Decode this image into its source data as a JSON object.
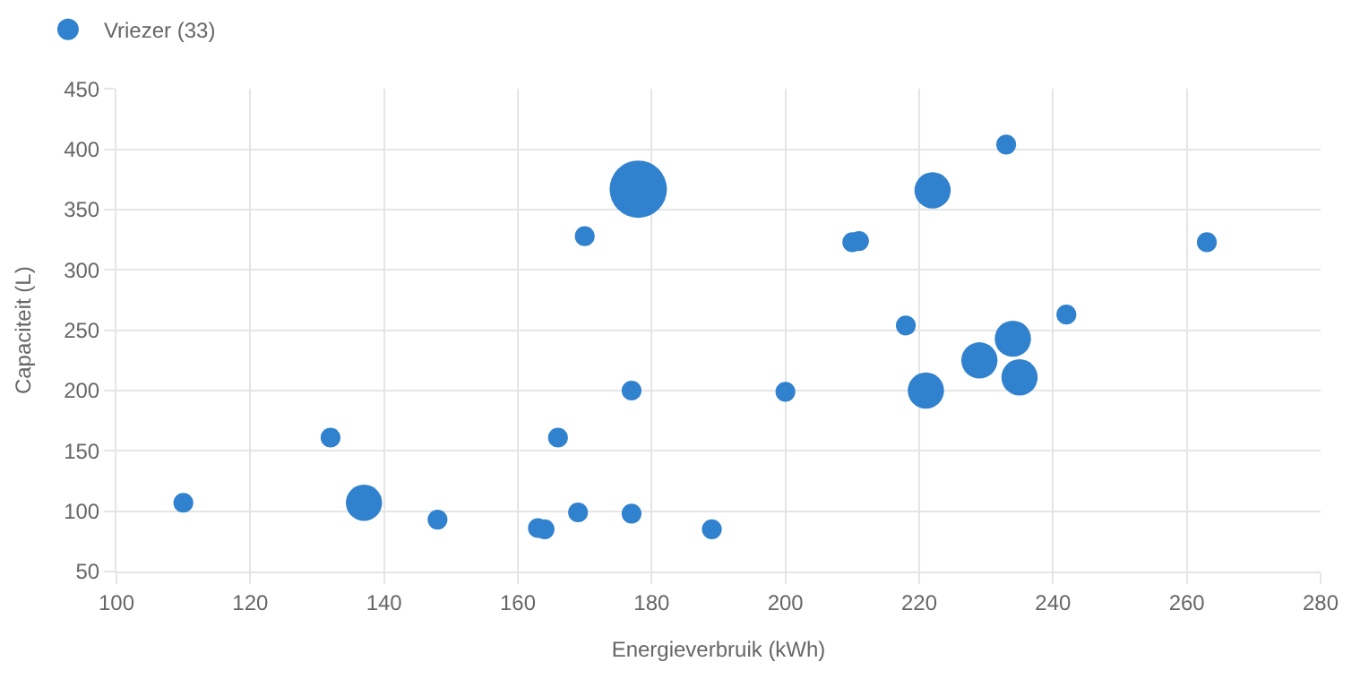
{
  "chart_data": {
    "type": "bubble",
    "xlabel": "Energieverbruik (kWh)",
    "ylabel": "Capaciteit (L)",
    "x": [
      110,
      132,
      137,
      148,
      163,
      164,
      166,
      169,
      170,
      177,
      177,
      178,
      189,
      200,
      210,
      211,
      218,
      221,
      222,
      229,
      233,
      234,
      235,
      242,
      263
    ],
    "series": [
      {
        "name": "Vriezer (33)",
        "color": "#3182ce",
        "values": [
          107,
          161,
          107,
          93,
          86,
          85,
          161,
          99,
          328,
          200,
          98,
          367,
          85,
          199,
          323,
          324,
          254,
          200,
          366,
          225,
          404,
          243,
          211,
          263,
          323
        ],
        "sizes": [
          0.12,
          0.12,
          0.4,
          0.12,
          0.12,
          0.12,
          0.12,
          0.12,
          0.12,
          0.12,
          0.12,
          1,
          0.12,
          0.12,
          0.12,
          0.12,
          0.12,
          0.4,
          0.4,
          0.4,
          0.12,
          0.4,
          0.4,
          0.12,
          0.12
        ]
      }
    ],
    "xlim": [
      100,
      280
    ],
    "xticks": [
      100,
      120,
      140,
      160,
      180,
      200,
      220,
      240,
      260,
      280
    ],
    "ylim": [
      50,
      450
    ],
    "yticks": [
      50,
      100,
      150,
      200,
      250,
      300,
      350,
      400,
      450
    ],
    "grid": true,
    "legend": "top left"
  }
}
